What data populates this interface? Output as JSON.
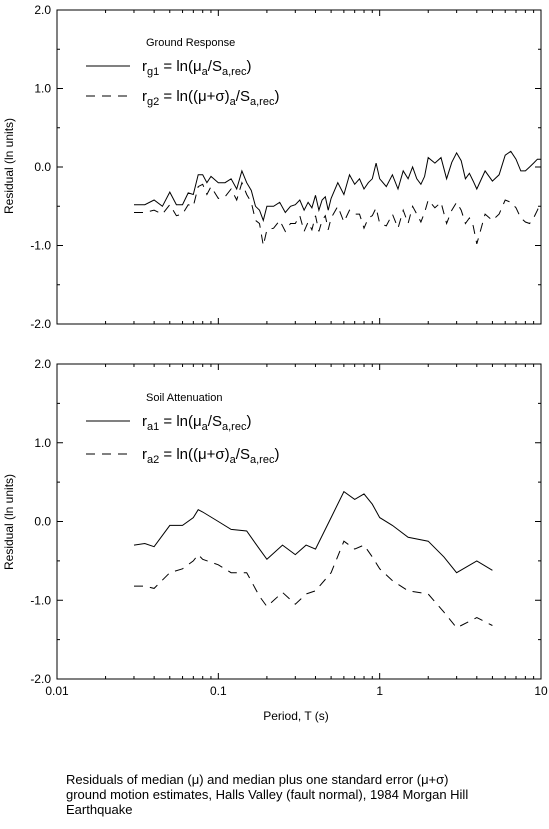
{
  "caption": {
    "line1": "Residuals of median (μ) and median plus one standard error (μ+σ)",
    "line2": "ground motion estimates, Halls Valley (fault normal), 1984 Morgan Hill",
    "line3": "Earthquake"
  },
  "chart_data": [
    {
      "type": "line",
      "legend_title": "Ground Response",
      "ylabel": "Residual (ln units)",
      "xlabel": "",
      "xscale": "log",
      "xlim": [
        0.03,
        10
      ],
      "ylim": [
        -2.0,
        2.0
      ],
      "xtick_labels": [],
      "ytick_labels": [
        "2.0",
        "1.0",
        "0.0",
        "-1.0",
        "-2.0"
      ],
      "ytick_values": [
        2.0,
        1.0,
        0.0,
        -1.0,
        -2.0
      ],
      "legend": [
        {
          "sym": "r",
          "sub": "g1",
          "eq_a": " = ln(μ",
          "sub2": "a",
          "eq_b": "/S",
          "sub3": "a,rec",
          "eq_c": ")"
        },
        {
          "sym": "r",
          "sub": "g2",
          "eq_a": " = ln((μ+σ)",
          "sub2": "a",
          "eq_b": "/S",
          "sub3": "a,rec",
          "eq_c": ")"
        }
      ],
      "series": [
        {
          "style": "solid",
          "x": [
            0.03,
            0.035,
            0.04,
            0.045,
            0.05,
            0.055,
            0.06,
            0.065,
            0.07,
            0.075,
            0.08,
            0.085,
            0.09,
            0.1,
            0.11,
            0.12,
            0.13,
            0.14,
            0.15,
            0.16,
            0.17,
            0.18,
            0.19,
            0.2,
            0.22,
            0.24,
            0.26,
            0.28,
            0.3,
            0.32,
            0.34,
            0.36,
            0.38,
            0.4,
            0.42,
            0.44,
            0.46,
            0.48,
            0.5,
            0.55,
            0.6,
            0.65,
            0.7,
            0.75,
            0.8,
            0.85,
            0.9,
            0.95,
            1.0,
            1.1,
            1.2,
            1.3,
            1.4,
            1.5,
            1.6,
            1.7,
            1.8,
            1.9,
            2.0,
            2.2,
            2.4,
            2.6,
            2.8,
            3.0,
            3.2,
            3.4,
            3.6,
            3.8,
            4.0,
            4.5,
            5.0,
            5.5,
            6.0,
            6.5,
            7.0,
            7.5,
            8.0,
            8.5,
            9.0,
            9.5,
            10.0
          ],
          "y": [
            -0.48,
            -0.48,
            -0.42,
            -0.5,
            -0.32,
            -0.48,
            -0.48,
            -0.33,
            -0.35,
            -0.1,
            -0.1,
            -0.2,
            -0.12,
            -0.2,
            -0.2,
            -0.15,
            -0.28,
            -0.05,
            -0.2,
            -0.3,
            -0.5,
            -0.55,
            -0.68,
            -0.5,
            -0.5,
            -0.45,
            -0.58,
            -0.5,
            -0.48,
            -0.42,
            -0.55,
            -0.45,
            -0.52,
            -0.36,
            -0.55,
            -0.42,
            -0.38,
            -0.55,
            -0.4,
            -0.2,
            -0.35,
            -0.1,
            -0.22,
            -0.15,
            -0.28,
            -0.2,
            -0.15,
            0.05,
            -0.15,
            -0.25,
            -0.1,
            -0.28,
            -0.05,
            -0.15,
            0.0,
            -0.15,
            -0.22,
            -0.12,
            0.12,
            0.05,
            0.12,
            -0.15,
            0.06,
            0.18,
            0.08,
            -0.15,
            -0.08,
            -0.18,
            -0.28,
            -0.05,
            -0.18,
            -0.1,
            0.15,
            0.2,
            0.1,
            -0.05,
            -0.05,
            0.0,
            0.05,
            0.1,
            0.1
          ]
        },
        {
          "style": "dashed",
          "x": [
            0.03,
            0.035,
            0.04,
            0.045,
            0.05,
            0.055,
            0.06,
            0.065,
            0.07,
            0.075,
            0.08,
            0.085,
            0.09,
            0.1,
            0.11,
            0.12,
            0.13,
            0.14,
            0.15,
            0.16,
            0.17,
            0.18,
            0.19,
            0.2,
            0.22,
            0.24,
            0.26,
            0.28,
            0.3,
            0.32,
            0.34,
            0.36,
            0.38,
            0.4,
            0.42,
            0.44,
            0.46,
            0.48,
            0.5,
            0.55,
            0.6,
            0.65,
            0.7,
            0.75,
            0.8,
            0.85,
            0.9,
            0.95,
            1.0,
            1.1,
            1.2,
            1.3,
            1.4,
            1.5,
            1.6,
            1.7,
            1.8,
            1.9,
            2.0,
            2.2,
            2.4,
            2.6,
            2.8,
            3.0,
            3.2,
            3.4,
            3.6,
            3.8,
            4.0,
            4.5,
            5.0,
            5.5,
            6.0,
            6.5,
            7.0,
            7.5,
            8.0,
            8.5,
            9.0,
            9.5,
            10.0
          ],
          "y": [
            -0.58,
            -0.58,
            -0.55,
            -0.6,
            -0.48,
            -0.62,
            -0.6,
            -0.48,
            -0.5,
            -0.25,
            -0.22,
            -0.35,
            -0.25,
            -0.4,
            -0.38,
            -0.28,
            -0.42,
            -0.2,
            -0.35,
            -0.45,
            -0.68,
            -0.72,
            -1.0,
            -0.8,
            -0.78,
            -0.68,
            -0.82,
            -0.72,
            -0.72,
            -0.62,
            -0.82,
            -0.7,
            -0.8,
            -0.62,
            -0.82,
            -0.68,
            -0.62,
            -0.8,
            -0.65,
            -0.5,
            -0.7,
            -0.55,
            -0.6,
            -0.6,
            -0.78,
            -0.65,
            -0.62,
            -0.52,
            -0.72,
            -0.75,
            -0.6,
            -0.78,
            -0.55,
            -0.72,
            -0.5,
            -0.6,
            -0.7,
            -0.58,
            -0.42,
            -0.52,
            -0.45,
            -0.72,
            -0.55,
            -0.45,
            -0.55,
            -0.72,
            -0.65,
            -0.75,
            -0.98,
            -0.6,
            -0.68,
            -0.6,
            -0.42,
            -0.45,
            -0.52,
            -0.65,
            -0.7,
            -0.72,
            -0.65,
            -0.55,
            -0.45
          ]
        }
      ]
    },
    {
      "type": "line",
      "legend_title": "Soil Attenuation",
      "ylabel": "Residual (ln units)",
      "xlabel": "Period, T (s)",
      "xscale": "log",
      "xlim": [
        0.01,
        10
      ],
      "ylim": [
        -2.0,
        2.0
      ],
      "xtick_labels": [
        "0.01",
        "0.1",
        "1",
        "10"
      ],
      "xtick_values": [
        0.01,
        0.1,
        1,
        10
      ],
      "ytick_labels": [
        "2.0",
        "1.0",
        "0.0",
        "-1.0",
        "-2.0"
      ],
      "ytick_values": [
        2.0,
        1.0,
        0.0,
        -1.0,
        -2.0
      ],
      "legend": [
        {
          "sym": "r",
          "sub": "a1",
          "eq_a": " = ln(μ",
          "sub2": "a",
          "eq_b": "/S",
          "sub3": "a,rec",
          "eq_c": ")"
        },
        {
          "sym": "r",
          "sub": "a2",
          "eq_a": " = ln((μ+σ)",
          "sub2": "a",
          "eq_b": "/S",
          "sub3": "a,rec",
          "eq_c": ")"
        }
      ],
      "series": [
        {
          "style": "solid",
          "x": [
            0.03,
            0.035,
            0.04,
            0.05,
            0.06,
            0.07,
            0.075,
            0.08,
            0.1,
            0.12,
            0.15,
            0.18,
            0.2,
            0.25,
            0.3,
            0.35,
            0.4,
            0.5,
            0.6,
            0.7,
            0.8,
            0.9,
            1.0,
            1.2,
            1.5,
            2.0,
            2.5,
            3.0,
            4.0,
            5.0
          ],
          "y": [
            -0.3,
            -0.28,
            -0.32,
            -0.05,
            -0.05,
            0.05,
            0.15,
            0.12,
            0.0,
            -0.1,
            -0.12,
            -0.35,
            -0.48,
            -0.3,
            -0.42,
            -0.3,
            -0.35,
            0.05,
            0.38,
            0.28,
            0.35,
            0.22,
            0.05,
            -0.05,
            -0.2,
            -0.25,
            -0.45,
            -0.65,
            -0.5,
            -0.62
          ]
        },
        {
          "style": "dashed",
          "x": [
            0.03,
            0.035,
            0.04,
            0.05,
            0.06,
            0.07,
            0.075,
            0.08,
            0.1,
            0.12,
            0.15,
            0.18,
            0.2,
            0.25,
            0.3,
            0.35,
            0.4,
            0.5,
            0.6,
            0.7,
            0.8,
            0.9,
            1.0,
            1.2,
            1.5,
            2.0,
            2.5,
            3.0,
            4.0,
            5.0
          ],
          "y": [
            -0.82,
            -0.82,
            -0.85,
            -0.65,
            -0.6,
            -0.5,
            -0.42,
            -0.48,
            -0.55,
            -0.65,
            -0.65,
            -0.95,
            -1.08,
            -0.9,
            -1.05,
            -0.92,
            -0.88,
            -0.65,
            -0.25,
            -0.35,
            -0.3,
            -0.45,
            -0.6,
            -0.75,
            -0.88,
            -0.92,
            -1.15,
            -1.35,
            -1.22,
            -1.32
          ]
        }
      ]
    }
  ]
}
